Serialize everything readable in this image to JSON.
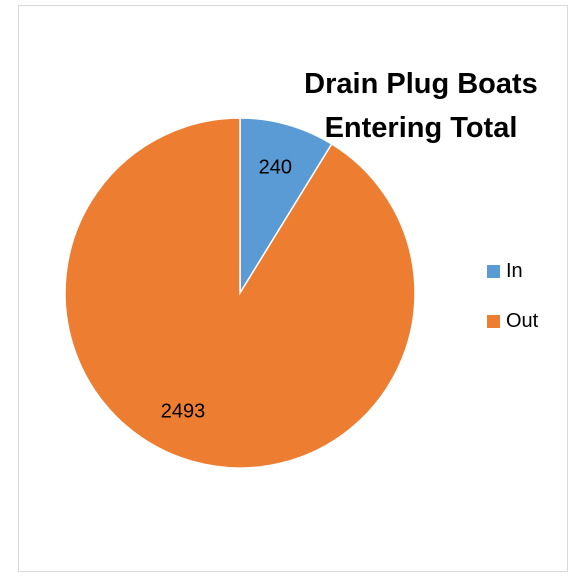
{
  "chart_data": {
    "type": "pie",
    "title": "Drain Plug Boats Entering Total",
    "categories": [
      "In",
      "Out"
    ],
    "values": [
      240,
      2493
    ],
    "colors": [
      "#5b9bd5",
      "#ed7d31"
    ],
    "legend_position": "right",
    "data_labels": [
      "240",
      "2493"
    ]
  }
}
